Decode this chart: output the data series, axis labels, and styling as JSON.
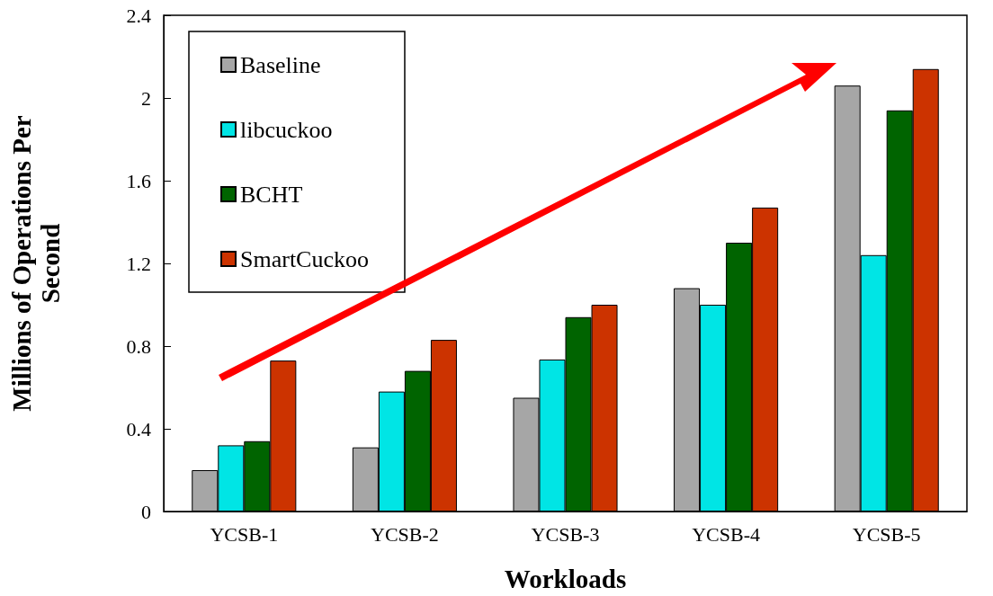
{
  "chart_data": {
    "type": "bar",
    "xlabel": "Workloads",
    "ylabel": "Millions of Operations Per Second",
    "categories": [
      "YCSB-1",
      "YCSB-2",
      "YCSB-3",
      "YCSB-4",
      "YCSB-5"
    ],
    "series": [
      {
        "name": "Baseline",
        "color": "#a6a6a6",
        "values": [
          0.2,
          0.31,
          0.55,
          1.08,
          2.06
        ]
      },
      {
        "name": "libcuckoo",
        "color": "#00e5e5",
        "values": [
          0.32,
          0.58,
          0.735,
          1.0,
          1.24
        ]
      },
      {
        "name": "BCHT",
        "color": "#006400",
        "values": [
          0.34,
          0.68,
          0.94,
          1.3,
          1.94
        ]
      },
      {
        "name": "SmartCuckoo",
        "color": "#cc3300",
        "values": [
          0.73,
          0.83,
          1.0,
          1.47,
          2.14
        ]
      }
    ],
    "ylim": [
      0,
      2.4
    ],
    "yticks": [
      0,
      0.4,
      0.8,
      1.2,
      1.6,
      2,
      2.4
    ],
    "grid": false,
    "legend": "top left"
  }
}
